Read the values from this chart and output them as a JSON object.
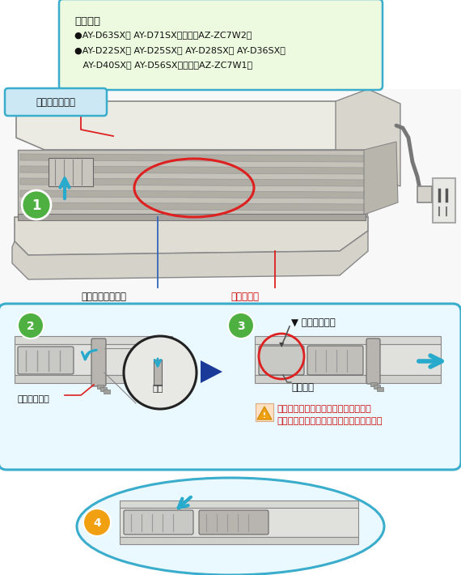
{
  "bg_color": "#ffffff",
  "info_lines": [
    "ユニット",
    "●AY-D63SX／ AY-D71SX：２個（AZ-ZC7W2）",
    "●AY-D22SX／ AY-D25SX／ AY-D28SX／ AY-D36SX／",
    "   AY-D40SX／ AY-D56SX：１個（AZ-ZC7W1）"
  ],
  "label_open": "オープンパネル",
  "label_power": "パワー集中ガイド",
  "label_airflow": "気流パネル",
  "label_lock": "ロックレバー",
  "label_push": "押す",
  "label_mark": "▼ 印を合わせる",
  "label_unit": "ユニット",
  "warn1": "落下のおそれがあるので、しっかりと",
  "warn2": "ユニットを持って、おこなってください。",
  "green": "#4db040",
  "orange": "#f0a010",
  "cyan": "#3aadcc",
  "blue_arrow": "#28aacc",
  "red": "#dd2020",
  "red_text": "#cc0000",
  "navy": "#1a3a9a",
  "black": "#111111",
  "info_bg": "#edfae0",
  "box23_bg": "#eaf8ff",
  "box4_bg": "#eaf8ff",
  "white": "#ffffff",
  "step1_bg": "#f5f5f5"
}
